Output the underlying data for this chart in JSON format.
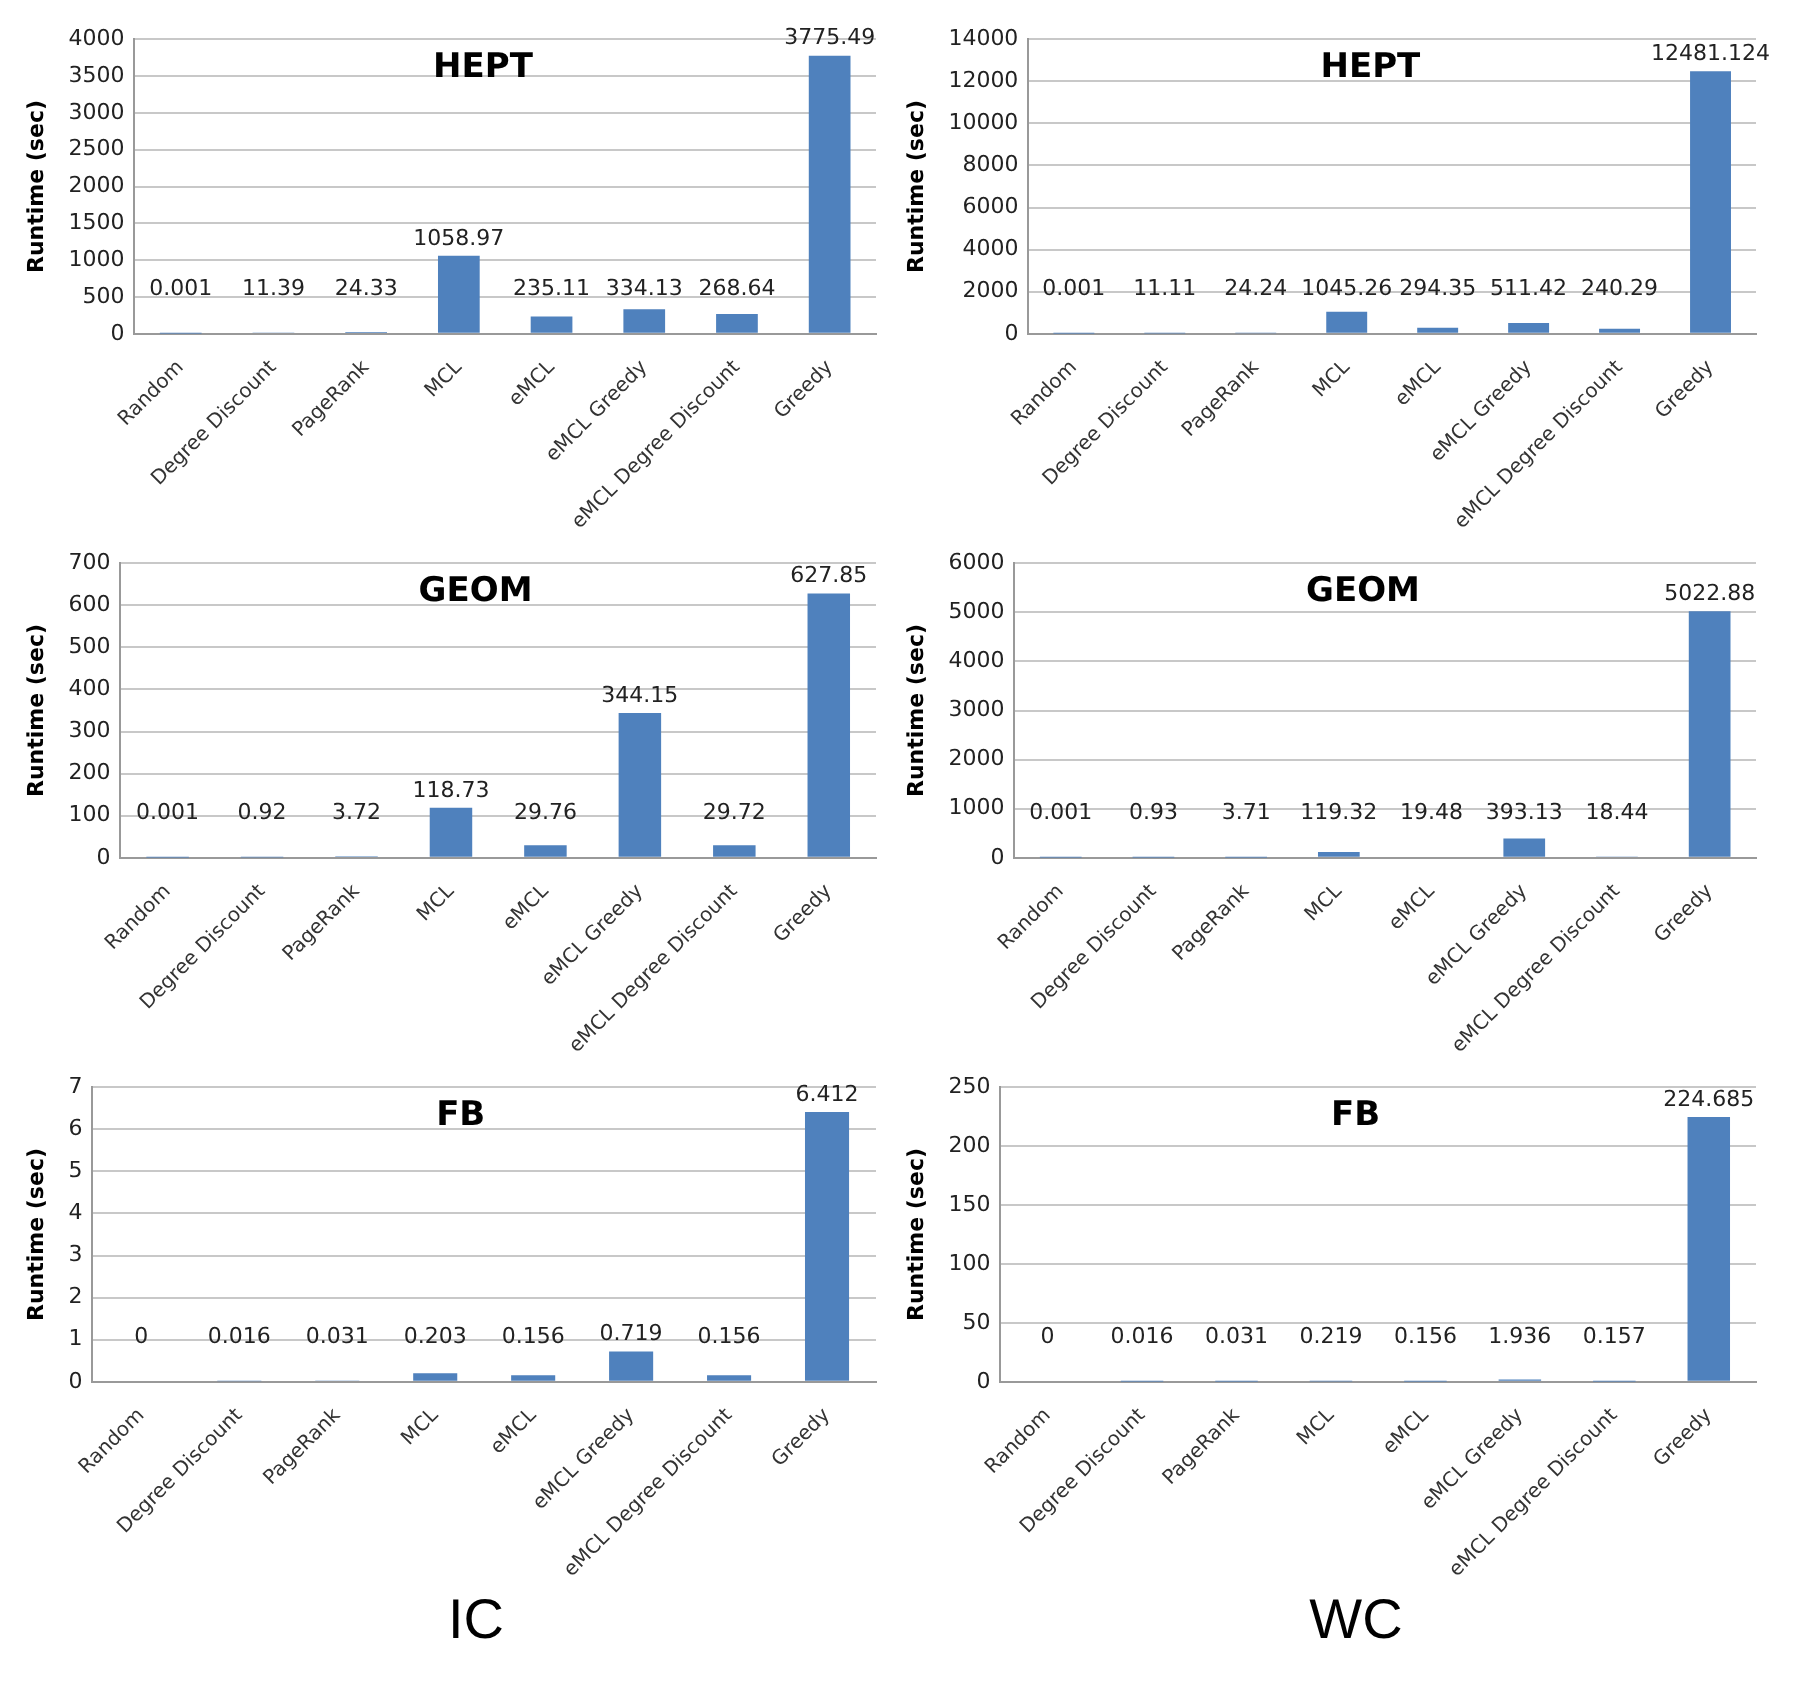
{
  "chart_data": [
    {
      "type": "bar",
      "title": "HEPT",
      "ylabel": "Runtime (sec)",
      "categories": [
        "Random",
        "Degree Discount",
        "PageRank",
        "MCL",
        "eMCL",
        "eMCL Greedy",
        "eMCL Degree Discount",
        "Greedy"
      ],
      "values": [
        0.001,
        11.39,
        24.33,
        1058.97,
        235.11,
        334.13,
        268.64,
        3775.49
      ],
      "color": "#4f81bd",
      "ylim": [
        0,
        4000
      ],
      "yticks": [
        0,
        500,
        1000,
        1500,
        2000,
        2500,
        3000,
        3500,
        4000
      ],
      "grid": "y",
      "data_labels": true
    },
    {
      "type": "bar",
      "title": "HEPT",
      "ylabel": "Runtime (sec)",
      "categories": [
        "Random",
        "Degree Discount",
        "PageRank",
        "MCL",
        "eMCL",
        "eMCL Greedy",
        "eMCL Degree Discount",
        "Greedy"
      ],
      "values": [
        0.001,
        11.11,
        24.24,
        1045.26,
        294.35,
        511.42,
        240.29,
        12481.124
      ],
      "color": "#4f81bd",
      "ylim": [
        0,
        14000
      ],
      "yticks": [
        0,
        2000,
        4000,
        6000,
        8000,
        10000,
        12000,
        14000
      ],
      "grid": "y",
      "data_labels": true
    },
    {
      "type": "bar",
      "title": "GEOM",
      "ylabel": "Runtime (sec)",
      "categories": [
        "Random",
        "Degree Discount",
        "PageRank",
        "MCL",
        "eMCL",
        "eMCL Greedy",
        "eMCL Degree Discount",
        "Greedy"
      ],
      "values": [
        0.001,
        0.92,
        3.72,
        118.73,
        29.76,
        344.15,
        29.72,
        627.85
      ],
      "color": "#4f81bd",
      "ylim": [
        0,
        700
      ],
      "yticks": [
        0,
        100,
        200,
        300,
        400,
        500,
        600,
        700
      ],
      "grid": "y",
      "data_labels": true
    },
    {
      "type": "bar",
      "title": "GEOM",
      "ylabel": "Runtime (sec)",
      "categories": [
        "Random",
        "Degree Discount",
        "PageRank",
        "MCL",
        "eMCL",
        "eMCL Greedy",
        "eMCL Degree Discount",
        "Greedy"
      ],
      "values": [
        0.001,
        0.93,
        3.71,
        119.32,
        19.48,
        393.13,
        18.44,
        5022.88
      ],
      "color": "#4f81bd",
      "ylim": [
        0,
        6000
      ],
      "yticks": [
        0,
        1000,
        2000,
        3000,
        4000,
        5000,
        6000
      ],
      "grid": "y",
      "data_labels": true
    },
    {
      "type": "bar",
      "title": "FB",
      "ylabel": "Runtime (sec)",
      "categories": [
        "Random",
        "Degree Discount",
        "PageRank",
        "MCL",
        "eMCL",
        "eMCL Greedy",
        "eMCL Degree Discount",
        "Greedy"
      ],
      "values": [
        0,
        0.016,
        0.031,
        0.203,
        0.156,
        0.719,
        0.156,
        6.412
      ],
      "color": "#4f81bd",
      "ylim": [
        0,
        7
      ],
      "yticks": [
        0,
        1,
        2,
        3,
        4,
        5,
        6,
        7
      ],
      "grid": "y",
      "data_labels": true,
      "annotations": [
        "IC"
      ]
    },
    {
      "type": "bar",
      "title": "FB",
      "ylabel": "Runtime (sec)",
      "categories": [
        "Random",
        "Degree Discount",
        "PageRank",
        "MCL",
        "eMCL",
        "eMCL Greedy",
        "eMCL Degree Discount",
        "Greedy"
      ],
      "values": [
        0,
        0.016,
        0.031,
        0.219,
        0.156,
        1.936,
        0.157,
        224.685
      ],
      "color": "#4f81bd",
      "ylim": [
        0,
        250
      ],
      "yticks": [
        0,
        50,
        100,
        150,
        200,
        250
      ],
      "grid": "y",
      "data_labels": true,
      "annotations": [
        "WC"
      ]
    }
  ]
}
